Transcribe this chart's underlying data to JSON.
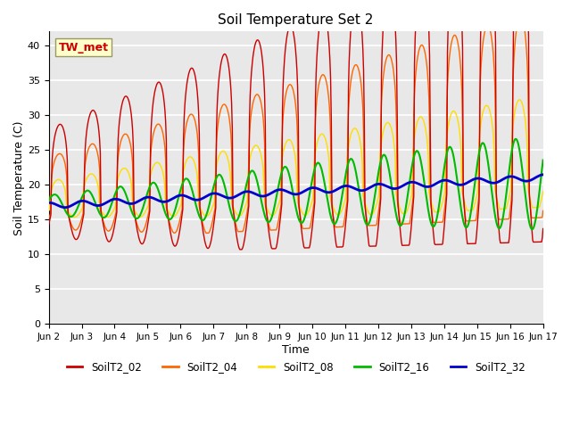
{
  "title": "Soil Temperature Set 2",
  "xlabel": "Time",
  "ylabel": "Soil Temperature (C)",
  "ylim": [
    0,
    42
  ],
  "yticks": [
    0,
    5,
    10,
    15,
    20,
    25,
    30,
    35,
    40
  ],
  "annotation_text": "TW_met",
  "colors": {
    "SoilT2_02": "#cc0000",
    "SoilT2_04": "#ff6600",
    "SoilT2_08": "#ffdd00",
    "SoilT2_16": "#00bb00",
    "SoilT2_32": "#0000cc"
  },
  "bg_color": "#e8e8e8",
  "grid_color": "#ffffff",
  "n_days": 15,
  "xtick_labels": [
    "Jun 2",
    "Jun 3",
    "Jun 4",
    "Jun 5",
    "Jun 6",
    "Jun 7",
    "Jun 8",
    "Jun 9",
    "Jun 10",
    "Jun 11",
    "Jun 12",
    "Jun 13",
    "Jun 14",
    "Jun 15",
    "Jun 16",
    "Jun 17"
  ],
  "xtick_positions": [
    0,
    1,
    2,
    3,
    4,
    5,
    6,
    7,
    8,
    9,
    10,
    11,
    12,
    13,
    14,
    15
  ]
}
